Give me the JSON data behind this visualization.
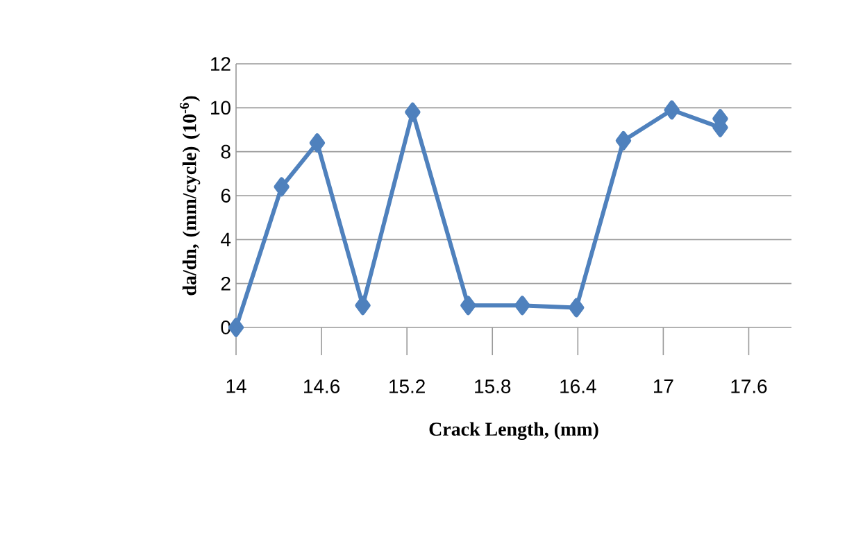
{
  "chart_data": {
    "type": "line",
    "xlabel": "Crack Length, (mm)",
    "ylabel": "da/dn, (mm/cycle) (10$^{-6}$)",
    "x": [
      14,
      14.32,
      14.57,
      14.89,
      15.24,
      15.63,
      16.01,
      16.39,
      16.72,
      17.06,
      17.4,
      17.4
    ],
    "series": [
      {
        "color": "#4f81bd",
        "values": [
          0,
          6.4,
          8.4,
          1.0,
          9.8,
          1.0,
          1.0,
          0.9,
          8.5,
          9.9,
          9.1,
          9.5
        ]
      }
    ],
    "xlim": [
      14,
      17.9
    ],
    "ylim": [
      0,
      12
    ],
    "xticks": [
      14,
      14.6,
      15.2,
      15.8,
      16.4,
      17,
      17.6
    ],
    "yticks": [
      0,
      2,
      4,
      6,
      8,
      10,
      12
    ],
    "grid": "y",
    "marker": "diamond",
    "line_style": "solid"
  }
}
